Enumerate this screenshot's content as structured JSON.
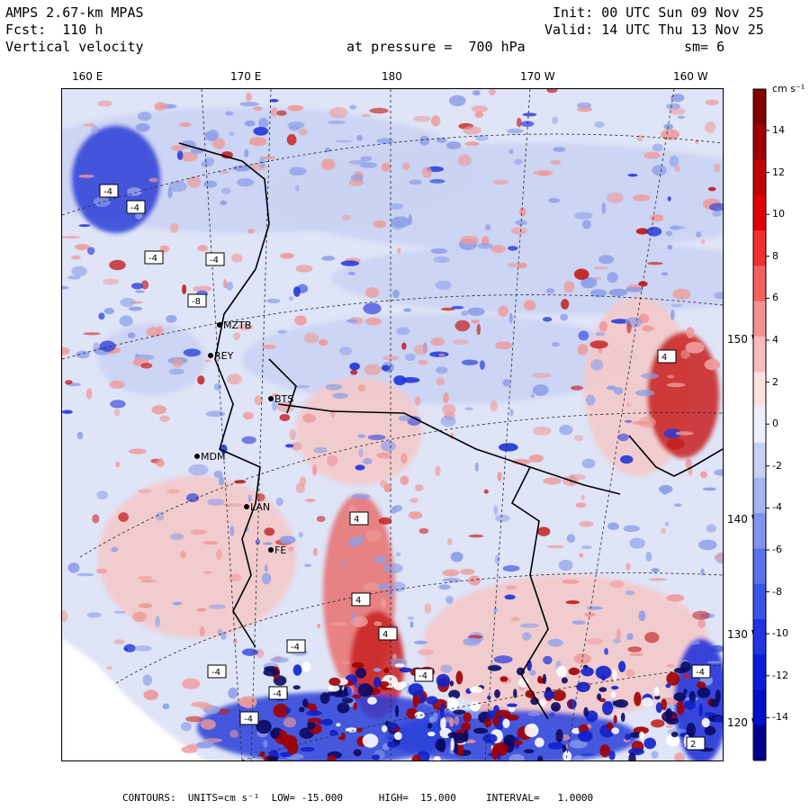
{
  "header": {
    "model": "AMPS 2.67-km MPAS",
    "forecast": "Fcst:  110 h",
    "field": "Vertical velocity",
    "init": "Init: 00 UTC Sun 09 Nov 25",
    "valid": "Valid: 14 UTC Thu 13 Nov 25",
    "level": "at pressure =  700 hPa",
    "smoothing": "sm= 6"
  },
  "axes": {
    "top_longitudes": [
      "160 E",
      "170 E",
      "180",
      "170 W",
      "160 W"
    ],
    "right_longitudes": [
      "150 W",
      "140 W",
      "130 W",
      "120 W"
    ]
  },
  "stations": [
    "MZTB",
    "REY",
    "BTS",
    "MDM",
    "LAN",
    "FE"
  ],
  "box_labels": [
    "-4",
    "-4",
    "-4",
    "-4",
    "-8",
    "4",
    "4",
    "4",
    "4",
    "-4",
    "-4",
    "-4",
    "-4",
    "-4",
    "-4",
    "2"
  ],
  "colorbar": {
    "units": "cm s⁻¹",
    "labels": [
      "14",
      "12",
      "10",
      "8",
      "6",
      "4",
      "2",
      "0",
      "-2",
      "-4",
      "-6",
      "-8",
      "-10",
      "-12",
      "-14"
    ],
    "colors": [
      "#800000",
      "#a00000",
      "#c00000",
      "#e00000",
      "#f03030",
      "#f46060",
      "#f49090",
      "#f8bcbc",
      "#fce0e0",
      "#eef0ff",
      "#c8d0f4",
      "#a6b4f0",
      "#8094ee",
      "#5a72ec",
      "#3a54e8",
      "#2035e0",
      "#0a1dd8",
      "#0010c8",
      "#00008c"
    ]
  },
  "footer": "CONTOURS:  UNITS=cm s⁻¹  LOW= -15.000      HIGH=  15.000     INTERVAL=   1.0000",
  "colors": {
    "positive": "#d63a3a",
    "negative": "#3c50d8",
    "neutral": "#f2f2f8",
    "pale_red": "#f5c8c8",
    "pale_blue": "#c9d2f2"
  }
}
